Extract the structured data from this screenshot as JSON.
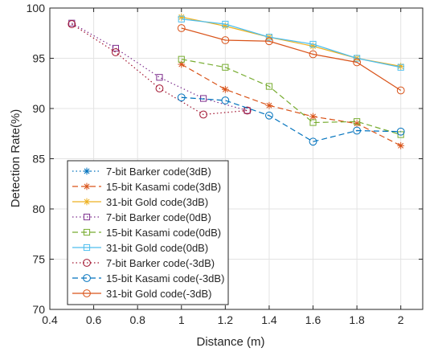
{
  "chart_data": {
    "type": "line",
    "xlabel": "Distance (m)",
    "ylabel": "Detection Rate(%)",
    "xlim": [
      0.4,
      2.1
    ],
    "ylim": [
      70,
      100
    ],
    "x_ticks": [
      0.4,
      0.6,
      0.8,
      1,
      1.2,
      1.4,
      1.6,
      1.8,
      2
    ],
    "x_tick_labels": [
      "0.4",
      "0.6",
      "0.8",
      "1",
      "1.2",
      "1.4",
      "1.6",
      "1.8",
      "2"
    ],
    "y_ticks": [
      70,
      75,
      80,
      85,
      90,
      95,
      100
    ],
    "y_tick_labels": [
      "70",
      "75",
      "80",
      "85",
      "90",
      "95",
      "100"
    ],
    "grid": true,
    "legend_position": "bottom-left",
    "series": [
      {
        "name": "7-bit Barker code(3dB)",
        "color": "#0072BD",
        "dash": "dotted",
        "marker": "asterisk",
        "x": [],
        "y": []
      },
      {
        "name": "15-bit Kasami code(3dB)",
        "color": "#D95319",
        "dash": "dashed",
        "marker": "asterisk",
        "x": [
          1.0,
          1.2,
          1.4,
          1.6,
          1.8,
          2.0
        ],
        "y": [
          94.4,
          91.9,
          90.3,
          89.2,
          88.5,
          86.3
        ]
      },
      {
        "name": "31-bit Gold code(3dB)",
        "color": "#EDB120",
        "dash": "solid",
        "marker": "asterisk",
        "x": [
          1.0,
          1.2,
          1.4,
          1.6,
          1.8,
          2.0
        ],
        "y": [
          99.1,
          98.2,
          97.1,
          96.2,
          95.0,
          94.2
        ]
      },
      {
        "name": "7-bit Barker code(0dB)",
        "color": "#7E2F8E",
        "dash": "dotted",
        "marker": "square",
        "x": [
          0.5,
          0.7,
          0.9,
          1.1,
          1.3
        ],
        "y": [
          98.5,
          96.0,
          93.1,
          91.0,
          89.8
        ]
      },
      {
        "name": "15-bit Kasami code(0dB)",
        "color": "#77AC30",
        "dash": "dashed",
        "marker": "square",
        "x": [
          1.0,
          1.2,
          1.4,
          1.6,
          1.8,
          2.0
        ],
        "y": [
          94.9,
          94.1,
          92.2,
          88.6,
          88.7,
          87.4
        ]
      },
      {
        "name": "31-bit Gold code(0dB)",
        "color": "#4DBEEE",
        "dash": "solid",
        "marker": "square",
        "x": [
          1.0,
          1.2,
          1.4,
          1.6,
          1.8,
          2.0
        ],
        "y": [
          98.9,
          98.4,
          97.1,
          96.4,
          95.0,
          94.1
        ]
      },
      {
        "name": "7-bit Barker code(-3dB)",
        "color": "#A2142F",
        "dash": "dotted",
        "marker": "circle",
        "x": [
          0.5,
          0.7,
          0.9,
          1.1,
          1.3
        ],
        "y": [
          98.4,
          95.6,
          92.0,
          89.4,
          89.8
        ]
      },
      {
        "name": "15-bit Kasami code(-3dB)",
        "color": "#0072BD",
        "dash": "dashed",
        "marker": "circle",
        "x": [
          1.0,
          1.2,
          1.4,
          1.6,
          1.8,
          2.0
        ],
        "y": [
          91.1,
          90.8,
          89.3,
          86.7,
          87.8,
          87.7
        ]
      },
      {
        "name": "31-bit Gold code(-3dB)",
        "color": "#D95319",
        "dash": "solid",
        "marker": "circle",
        "x": [
          1.0,
          1.2,
          1.4,
          1.6,
          1.8,
          2.0
        ],
        "y": [
          98.0,
          96.8,
          96.7,
          95.4,
          94.6,
          91.8
        ]
      }
    ]
  }
}
